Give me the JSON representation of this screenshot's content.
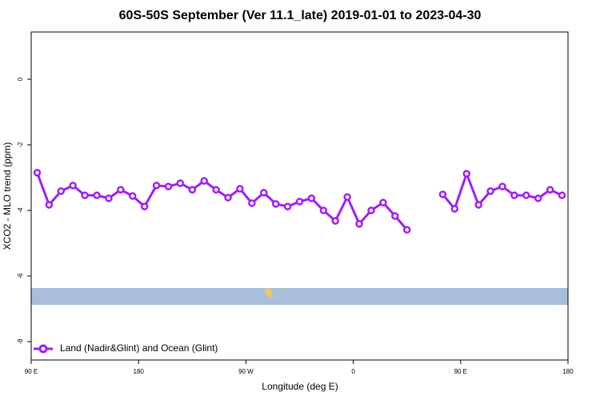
{
  "chart_data": {
    "type": "line",
    "title": "60S-50S September (Ver 11.1_late)   2019-01-01 to 2023-04-30",
    "x_label": "Longitude (deg E)",
    "y_label": "XCO2 - MLO trend (ppm)",
    "xlim": [
      90,
      540
    ],
    "xticks": [
      {
        "value": 90,
        "label": "90 E"
      },
      {
        "value": 180,
        "label": "180"
      },
      {
        "value": 270,
        "label": "90 W"
      },
      {
        "value": 360,
        "label": "0"
      },
      {
        "value": 450,
        "label": "90 E"
      },
      {
        "value": 540,
        "label": "180"
      }
    ],
    "ylim": [
      -8.56,
      1.44
    ],
    "yticks": [
      0,
      -2,
      -4,
      -6,
      -8
    ],
    "x": [
      95,
      105,
      115,
      125,
      135,
      145,
      155,
      165,
      175,
      185,
      195,
      205,
      215,
      225,
      235,
      245,
      255,
      265,
      275,
      285,
      295,
      305,
      315,
      325,
      335,
      345,
      355,
      365,
      375,
      385,
      395,
      405,
      415,
      425,
      435,
      445,
      455,
      465,
      475,
      485,
      495,
      505,
      515,
      525,
      535
    ],
    "series": [
      {
        "name": "Land (Nadir&Glint) and Ocean (Glint)",
        "color": "#a020f0",
        "values": [
          -2.85,
          -3.83,
          -3.41,
          -3.24,
          -3.54,
          -3.54,
          -3.63,
          -3.37,
          -3.56,
          -3.88,
          -3.24,
          -3.27,
          -3.17,
          -3.37,
          -3.1,
          -3.37,
          -3.61,
          -3.34,
          -3.78,
          -3.46,
          -3.8,
          -3.88,
          -3.73,
          -3.63,
          -4.0,
          -4.32,
          -3.59,
          -4.41,
          -4.0,
          -3.76,
          -4.17,
          -4.59,
          null,
          null,
          -3.51,
          -3.95,
          -2.88,
          -3.83,
          -3.41,
          -3.27,
          -3.54,
          -3.54,
          -3.63,
          -3.37,
          -3.54
        ]
      }
    ],
    "legend": "bottom-left"
  }
}
